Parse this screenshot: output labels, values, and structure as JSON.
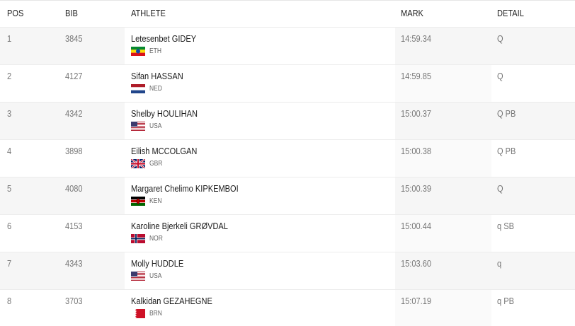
{
  "table": {
    "headers": [
      "POS",
      "BIB",
      "ATHLETE",
      "MARK",
      "DETAIL"
    ],
    "rows": [
      {
        "pos": 1,
        "bib": 3845,
        "name": "Letesenbet GIDEY",
        "country": "ETH",
        "mark": "14:59.34",
        "detail": "Q"
      },
      {
        "pos": 2,
        "bib": 4127,
        "name": "Sifan HASSAN",
        "country": "NED",
        "mark": "14:59.85",
        "detail": "Q"
      },
      {
        "pos": 3,
        "bib": 4342,
        "name": "Shelby HOULIHAN",
        "country": "USA",
        "mark": "15:00.37",
        "detail": "Q PB"
      },
      {
        "pos": 4,
        "bib": 3898,
        "name": "Eilish MCCOLGAN",
        "country": "GBR",
        "mark": "15:00.38",
        "detail": "Q PB"
      },
      {
        "pos": 5,
        "bib": 4080,
        "name": "Margaret Chelimo KIPKEMBOI",
        "country": "KEN",
        "mark": "15:00.39",
        "detail": "Q"
      },
      {
        "pos": 6,
        "bib": 4153,
        "name": "Karoline Bjerkeli GRØVDAL",
        "country": "NOR",
        "mark": "15:00.44",
        "detail": "q SB"
      },
      {
        "pos": 7,
        "bib": 4343,
        "name": "Molly HUDDLE",
        "country": "USA",
        "mark": "15:03.60",
        "detail": "q"
      },
      {
        "pos": 8,
        "bib": 3703,
        "name": "Kalkidan GEZAHEGNE",
        "country": "BRN",
        "mark": "15:07.19",
        "detail": "q PB"
      }
    ]
  }
}
